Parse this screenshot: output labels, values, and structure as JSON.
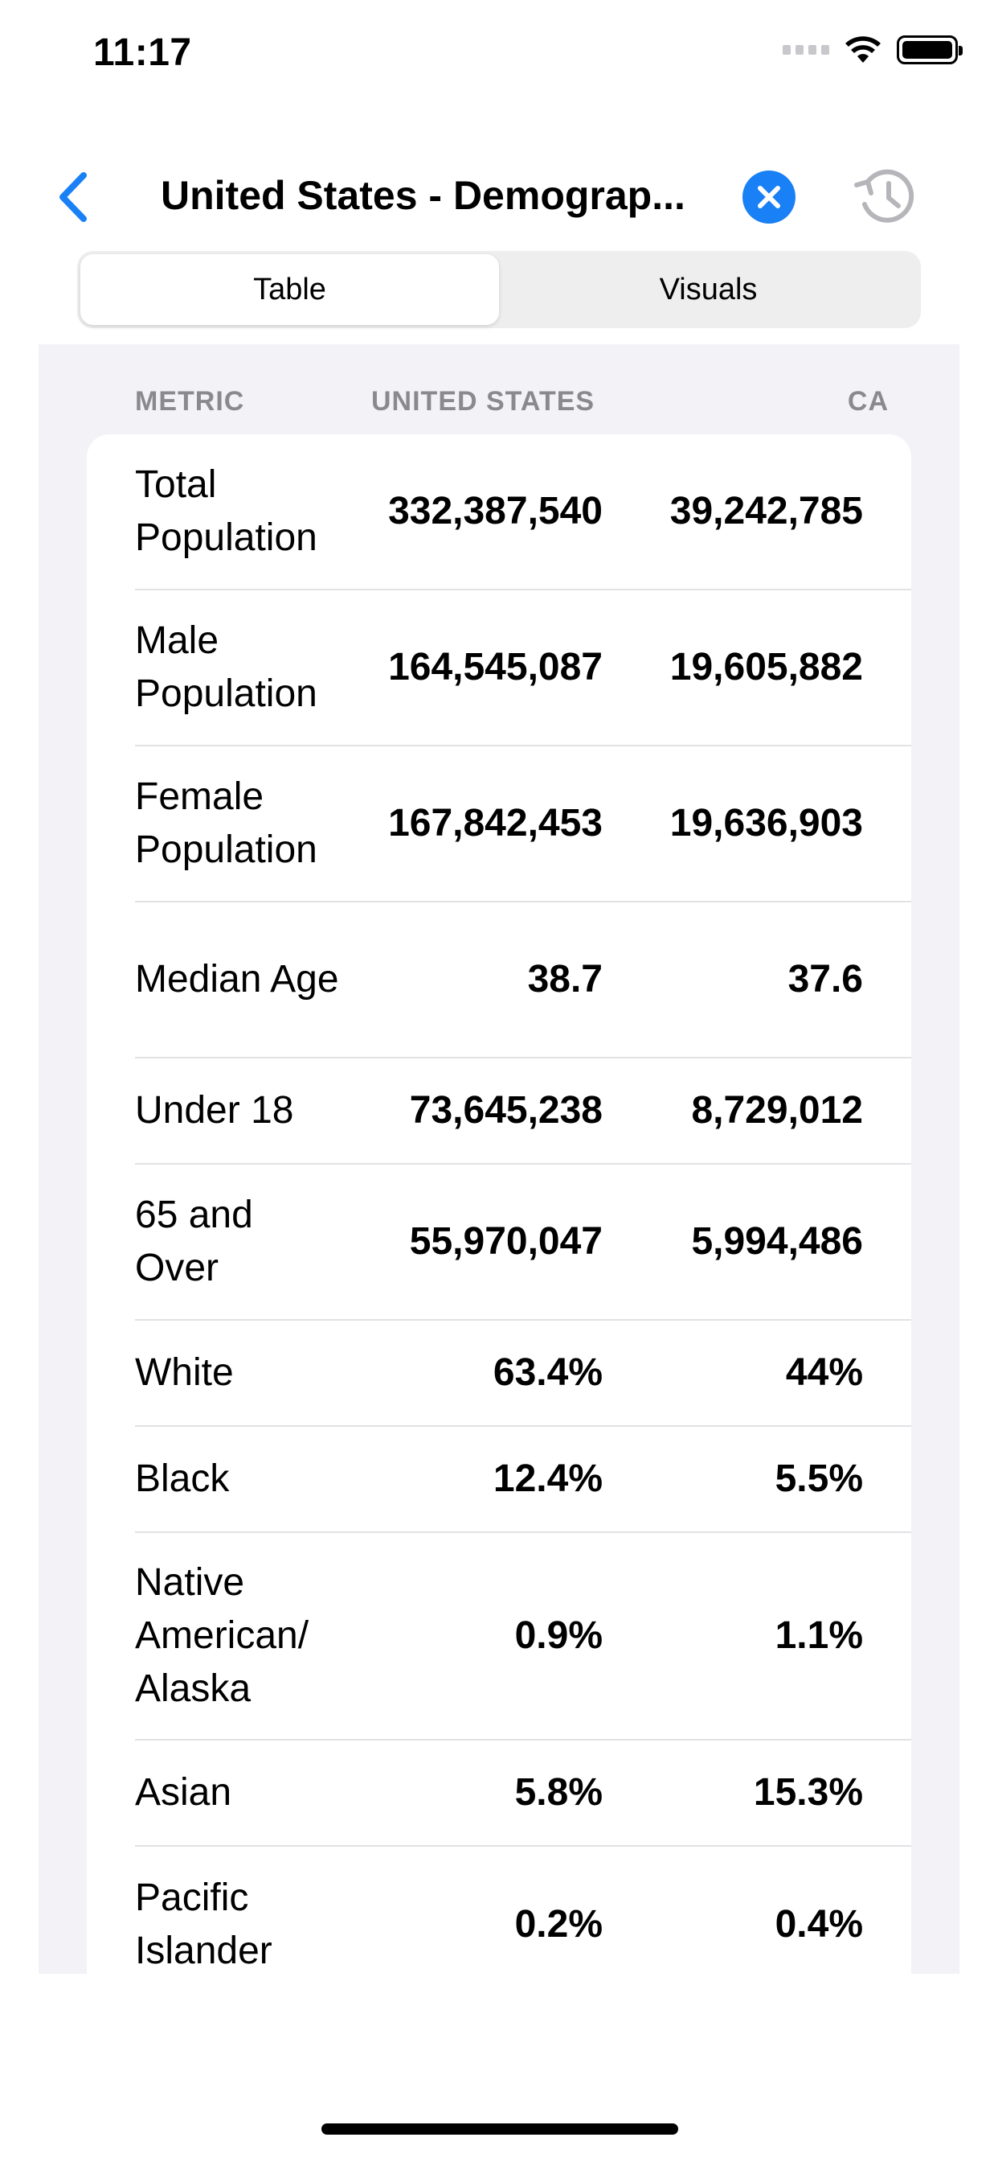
{
  "status_bar": {
    "time": "11:17"
  },
  "nav": {
    "title": "United States - Demograp...",
    "back_icon": "chevron-left-icon",
    "clear_icon": "close-circle-icon",
    "history_icon": "history-icon"
  },
  "segments": [
    {
      "label": "Table",
      "selected": true
    },
    {
      "label": "Visuals",
      "selected": false
    }
  ],
  "table": {
    "headers": {
      "metric": "METRIC",
      "us": "UNITED STATES",
      "ca": "CA"
    },
    "rows": [
      {
        "metric": "Total Population",
        "us": "332,387,540",
        "ca": "39,242,785"
      },
      {
        "metric": "Male Population",
        "us": "164,545,087",
        "ca": "19,605,882"
      },
      {
        "metric": "Female Population",
        "us": "167,842,453",
        "ca": "19,636,903"
      },
      {
        "metric": "Median Age",
        "us": "38.7",
        "ca": "37.6"
      },
      {
        "metric": "Under 18",
        "us": "73,645,238",
        "ca": "8,729,012"
      },
      {
        "metric": "65 and Over",
        "us": "55,970,047",
        "ca": "5,994,486"
      },
      {
        "metric": "White",
        "us": "63.4%",
        "ca": "44%"
      },
      {
        "metric": "Black",
        "us": "12.4%",
        "ca": "5.5%"
      },
      {
        "metric": "Native American/ Alaska",
        "us": "0.9%",
        "ca": "1.1%"
      },
      {
        "metric": "Asian",
        "us": "5.8%",
        "ca": "15.3%"
      },
      {
        "metric": "Pacific Islander",
        "us": "0.2%",
        "ca": "0.4%"
      }
    ]
  },
  "colors": {
    "accent": "#1a80f5",
    "header_gray": "#8a8a8e",
    "background": "#f2f2f7"
  }
}
